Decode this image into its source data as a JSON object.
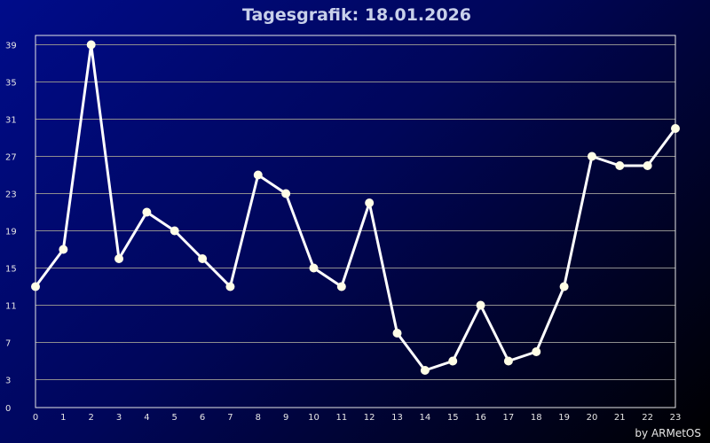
{
  "chart_data": {
    "type": "line",
    "title": "Tagesgrafik: 18.01.2026",
    "xlabel": "",
    "ylabel": "",
    "x": [
      0,
      1,
      2,
      3,
      4,
      5,
      6,
      7,
      8,
      9,
      10,
      11,
      12,
      13,
      14,
      15,
      16,
      17,
      18,
      19,
      20,
      21,
      22,
      23
    ],
    "y": [
      13,
      17,
      39,
      16,
      21,
      19,
      16,
      13,
      25,
      23,
      15,
      13,
      22,
      8,
      4,
      5,
      11,
      5,
      6,
      13,
      27,
      26,
      26,
      30
    ],
    "xlim": [
      0,
      23
    ],
    "ylim": [
      0,
      40
    ],
    "yticks": [
      0,
      3,
      7,
      11,
      15,
      19,
      23,
      27,
      31,
      35,
      39
    ],
    "grid": true,
    "legend": "none",
    "line_color": "#ffffff",
    "marker_color": "#fffde6",
    "grid_color": "#8e8e8e"
  },
  "credit": "by ARMetOS"
}
